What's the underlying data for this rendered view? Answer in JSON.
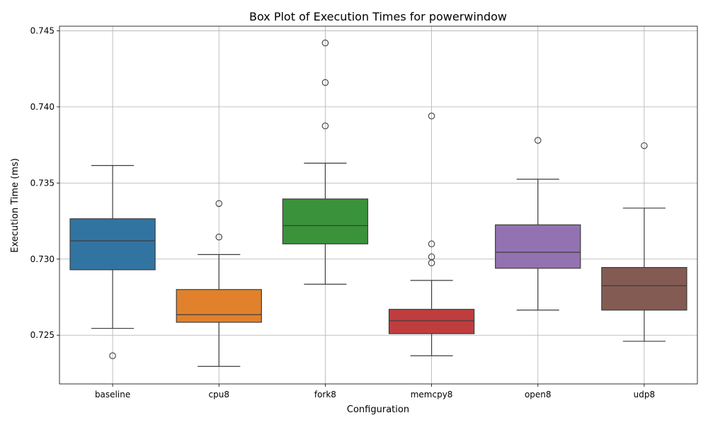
{
  "chart_data": {
    "type": "box",
    "title": "Box Plot of Execution Times for powerwindow",
    "xlabel": "Configuration",
    "ylabel": "Execution Time (ms)",
    "ylim": [
      0.7218,
      0.7453
    ],
    "yticks": [
      0.725,
      0.73,
      0.735,
      0.74,
      0.745
    ],
    "ytick_labels": [
      "0.725",
      "0.730",
      "0.735",
      "0.740",
      "0.745"
    ],
    "grid": true,
    "categories": [
      "baseline",
      "cpu8",
      "fork8",
      "memcpy8",
      "open8",
      "udp8"
    ],
    "boxes": [
      {
        "name": "baseline",
        "color": "#3274a1",
        "whisker_low": 0.72545,
        "q1": 0.7293,
        "median": 0.7312,
        "q3": 0.73265,
        "whisker_high": 0.73615,
        "outliers": [
          0.72365
        ]
      },
      {
        "name": "cpu8",
        "color": "#e1812c",
        "whisker_low": 0.72295,
        "q1": 0.72585,
        "median": 0.72635,
        "q3": 0.728,
        "whisker_high": 0.7303,
        "outliers": [
          0.73145,
          0.73365
        ]
      },
      {
        "name": "fork8",
        "color": "#3a923a",
        "whisker_low": 0.72835,
        "q1": 0.731,
        "median": 0.7322,
        "q3": 0.73395,
        "whisker_high": 0.7363,
        "outliers": [
          0.73875,
          0.7416,
          0.7442
        ]
      },
      {
        "name": "memcpy8",
        "color": "#c03d3e",
        "whisker_low": 0.72365,
        "q1": 0.7251,
        "median": 0.72595,
        "q3": 0.7267,
        "whisker_high": 0.7286,
        "outliers": [
          0.72975,
          0.73015,
          0.731,
          0.7394
        ]
      },
      {
        "name": "open8",
        "color": "#9372b2",
        "whisker_low": 0.72665,
        "q1": 0.7294,
        "median": 0.73045,
        "q3": 0.73225,
        "whisker_high": 0.73525,
        "outliers": [
          0.7378
        ]
      },
      {
        "name": "udp8",
        "color": "#845b53",
        "whisker_low": 0.7246,
        "q1": 0.72665,
        "median": 0.72825,
        "q3": 0.72945,
        "whisker_high": 0.73335,
        "outliers": [
          0.73745
        ]
      }
    ]
  }
}
